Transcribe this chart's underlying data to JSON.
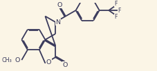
{
  "bg_color": "#fbf5e6",
  "bond_color": "#3a3a5c",
  "bond_lw": 1.3,
  "text_color": "#3a3a5c",
  "font_size": 6.8,
  "fig_w": 2.27,
  "fig_h": 1.03,
  "dpi": 100,
  "xlim": [
    0,
    10.0
  ],
  "ylim": [
    0,
    4.5
  ],
  "BL": 0.78
}
